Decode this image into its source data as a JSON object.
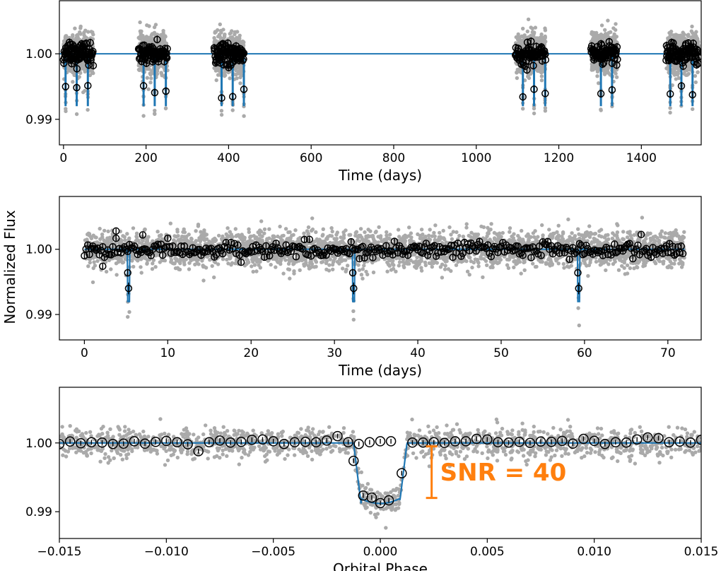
{
  "figure": {
    "ylabel": "Normalized Flux",
    "colors": {
      "scatter": "#aaaaaa",
      "binned": "#000000",
      "model": "#1f77b4",
      "annotation": "#ff7f0e"
    }
  },
  "chart_data": [
    {
      "type": "scatter",
      "title": "",
      "xlabel": "Time (days)",
      "ylabel": "Normalized Flux",
      "xlim": [
        -10,
        1545
      ],
      "ylim": [
        0.9861,
        1.0081
      ],
      "xticks": [
        0,
        200,
        400,
        600,
        800,
        1000,
        1200,
        1400
      ],
      "yticks": [
        0.99,
        1.0
      ],
      "ytick_labels": [
        "0.99",
        "1.00"
      ],
      "segments": [
        [
          0,
          72
        ],
        [
          182,
          252
        ],
        [
          365,
          437
        ],
        [
          1095,
          1168
        ],
        [
          1278,
          1342
        ],
        [
          1460,
          1540
        ]
      ],
      "transit_times": [
        5,
        32,
        59,
        194,
        221,
        248,
        383,
        410,
        437,
        1113,
        1140,
        1167,
        1302,
        1329,
        1470,
        1497,
        1524
      ],
      "series": [
        {
          "name": "Raw flux",
          "style": "gray dots"
        },
        {
          "name": "Binned flux",
          "style": "black open circles with error bars"
        },
        {
          "name": "Transit model",
          "style": "blue line"
        }
      ],
      "model_depth": 0.008
    },
    {
      "type": "scatter",
      "title": "",
      "xlabel": "Time (days)",
      "ylabel": "Normalized Flux",
      "xlim": [
        -3,
        74
      ],
      "ylim": [
        0.9861,
        1.0081
      ],
      "xticks": [
        0,
        10,
        20,
        30,
        40,
        50,
        60,
        70
      ],
      "yticks": [
        0.99,
        1.0
      ],
      "ytick_labels": [
        "0.99",
        "1.00"
      ],
      "data_range": [
        0,
        72
      ],
      "transit_times": [
        5.3,
        32.3,
        59.3
      ],
      "series": [
        {
          "name": "Raw flux",
          "style": "gray dots"
        },
        {
          "name": "Binned flux",
          "style": "black open circles with error bars"
        },
        {
          "name": "Transit model",
          "style": "blue line"
        }
      ],
      "model_depth": 0.008
    },
    {
      "type": "scatter",
      "title": "",
      "xlabel": "Orbital Phase",
      "ylabel": "Normalized Flux",
      "xlim": [
        -0.015,
        0.015
      ],
      "ylim": [
        0.9861,
        1.0081
      ],
      "xticks": [
        -0.015,
        -0.01,
        -0.005,
        0.0,
        0.005,
        0.01,
        0.015
      ],
      "xtick_labels": [
        "−0.015",
        "−0.010",
        "−0.005",
        "0.000",
        "0.005",
        "0.010",
        "0.015"
      ],
      "yticks": [
        0.99,
        1.0
      ],
      "ytick_labels": [
        "0.99",
        "1.00"
      ],
      "transit_half_width": 0.00125,
      "model_depth": 0.0088,
      "binned_points": [
        [
          -0.015,
          0.99985
        ],
        [
          -0.0145,
          1.0002
        ],
        [
          -0.014,
          0.99995
        ],
        [
          -0.0135,
          1.0001
        ],
        [
          -0.013,
          1.00005
        ],
        [
          -0.0125,
          0.99985
        ],
        [
          -0.012,
          0.9999
        ],
        [
          -0.0115,
          1.00025
        ],
        [
          -0.011,
          0.9999
        ],
        [
          -0.0105,
          1.00015
        ],
        [
          -0.01,
          1.0003
        ],
        [
          -0.0095,
          1.0001
        ],
        [
          -0.009,
          0.9998
        ],
        [
          -0.0085,
          0.9988
        ],
        [
          -0.008,
          1.0001
        ],
        [
          -0.0075,
          1.00035
        ],
        [
          -0.007,
          1.00005
        ],
        [
          -0.0065,
          1.00015
        ],
        [
          -0.006,
          1.00045
        ],
        [
          -0.0055,
          1.0005
        ],
        [
          -0.005,
          1.00025
        ],
        [
          -0.0045,
          0.99985
        ],
        [
          -0.004,
          1.0001
        ],
        [
          -0.0035,
          1.00015
        ],
        [
          -0.003,
          1.0001
        ],
        [
          -0.0025,
          1.00035
        ],
        [
          -0.002,
          1.001
        ],
        [
          -0.0015,
          1.0001
        ],
        [
          -0.001,
          0.99985
        ],
        [
          -0.0005,
          1.0001
        ],
        [
          0.0,
          1.00025
        ],
        [
          0.0005,
          1.00025
        ],
        [
          -0.00125,
          0.9974
        ],
        [
          -0.0008,
          0.99235
        ],
        [
          -0.0004,
          0.99205
        ],
        [
          0.0,
          0.99125
        ],
        [
          0.0004,
          0.99165
        ],
        [
          0.001,
          0.9956
        ],
        [
          0.0015,
          1.00005
        ],
        [
          0.002,
          1.00005
        ],
        [
          0.0025,
          1.0001
        ],
        [
          0.003,
          1.0
        ],
        [
          0.0035,
          1.00025
        ],
        [
          0.004,
          1.00025
        ],
        [
          0.0045,
          1.0006
        ],
        [
          0.005,
          1.0005
        ],
        [
          0.0055,
          1.0001
        ],
        [
          0.006,
          1.00005
        ],
        [
          0.0065,
          1.00015
        ],
        [
          0.007,
          1.0
        ],
        [
          0.0075,
          1.0002
        ],
        [
          0.008,
          1.00015
        ],
        [
          0.0085,
          1.0003
        ],
        [
          0.009,
          0.9999
        ],
        [
          0.0095,
          1.0006
        ],
        [
          0.01,
          1.0003
        ],
        [
          0.0105,
          0.99985
        ],
        [
          0.011,
          1.0001
        ],
        [
          0.0115,
          1.00005
        ],
        [
          0.012,
          1.0005
        ],
        [
          0.0125,
          1.0008
        ],
        [
          0.013,
          1.0007
        ],
        [
          0.0135,
          1.0001
        ],
        [
          0.014,
          1.0002
        ],
        [
          0.0145,
          1.00005
        ],
        [
          0.015,
          1.00045
        ]
      ],
      "annotation": {
        "text": "SNR = 40",
        "x_phase": 0.0024,
        "y_range": [
          0.992,
          0.9995
        ]
      },
      "series": [
        {
          "name": "Phase-folded raw flux",
          "style": "gray dots"
        },
        {
          "name": "Binned flux",
          "style": "black open circles with error bars"
        },
        {
          "name": "Transit model",
          "style": "blue line"
        }
      ]
    }
  ]
}
